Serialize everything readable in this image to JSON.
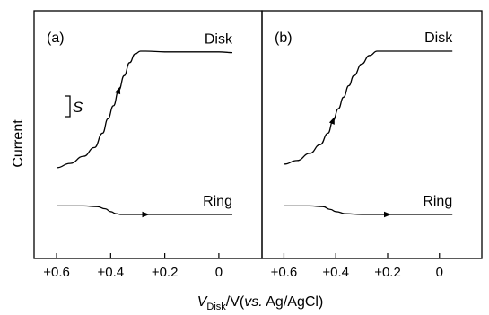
{
  "chart_data": {
    "type": "line",
    "ylabel": "Current",
    "xlabel_parts": {
      "v": "V",
      "sub": "Disk",
      "slash": "/V(",
      "vs": "vs.",
      "rest": " Ag/AgCl)"
    },
    "x_ticks": [
      "+0.6",
      "+0.4",
      "+0.2",
      "0"
    ],
    "xlim": [
      0.65,
      -0.07
    ],
    "scale_bar_label": "S",
    "panels": [
      {
        "label": "(a)",
        "series": [
          {
            "name": "Disk",
            "x": [
              0.6,
              0.55,
              0.5,
              0.46,
              0.43,
              0.41,
              0.39,
              0.37,
              0.35,
              0.33,
              0.31,
              0.29,
              0.27,
              0.2,
              0.1,
              0.0,
              -0.05
            ],
            "y": [
              1.9,
              2.2,
              2.7,
              3.3,
              4.3,
              5.3,
              6.2,
              7.3,
              8.3,
              9.2,
              9.8,
              10.0,
              10.0,
              9.95,
              9.95,
              9.95,
              9.9
            ],
            "arrow_at": 0.37
          },
          {
            "name": "Ring",
            "x": [
              0.6,
              0.5,
              0.45,
              0.42,
              0.4,
              0.38,
              0.36,
              0.3,
              0.2,
              0.1,
              0.0,
              -0.05
            ],
            "y": [
              -0.75,
              -0.75,
              -0.8,
              -0.95,
              -1.15,
              -1.3,
              -1.35,
              -1.35,
              -1.35,
              -1.35,
              -1.35,
              -1.35
            ],
            "arrow_at": 0.27
          }
        ]
      },
      {
        "label": "(b)",
        "series": [
          {
            "name": "Disk",
            "x": [
              0.6,
              0.55,
              0.5,
              0.46,
              0.43,
              0.41,
              0.39,
              0.37,
              0.35,
              0.33,
              0.3,
              0.27,
              0.24,
              0.2,
              0.1,
              0.0,
              -0.05
            ],
            "y": [
              2.15,
              2.4,
              2.9,
              3.5,
              4.3,
              5.2,
              6.0,
              6.8,
              7.6,
              8.3,
              9.1,
              9.7,
              10.0,
              10.0,
              10.0,
              10.0,
              10.0
            ],
            "arrow_at": 0.41
          },
          {
            "name": "Ring",
            "x": [
              0.6,
              0.5,
              0.45,
              0.42,
              0.4,
              0.36,
              0.3,
              0.2,
              0.1,
              0.0,
              -0.05
            ],
            "y": [
              -0.75,
              -0.75,
              -0.8,
              -1.0,
              -1.15,
              -1.3,
              -1.35,
              -1.35,
              -1.35,
              -1.35,
              -1.35
            ],
            "arrow_at": 0.2
          }
        ]
      }
    ]
  }
}
